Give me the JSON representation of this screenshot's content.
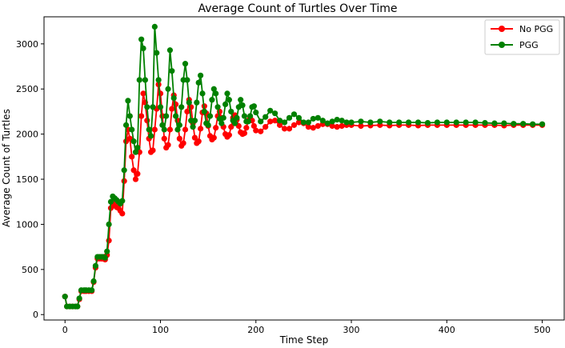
{
  "chart_data": {
    "type": "line",
    "title": "Average Count of Turtles Over Time",
    "xlabel": "Time Step",
    "ylabel": "Average Count of Turtles",
    "xlim": [
      -22,
      523
    ],
    "ylim": [
      -60,
      3300
    ],
    "xticks": [
      0,
      100,
      200,
      300,
      400,
      500
    ],
    "yticks": [
      0,
      500,
      1000,
      1500,
      2000,
      2500,
      3000
    ],
    "marker": "circle",
    "legend_position": "top-right",
    "grid": false,
    "series": [
      {
        "name": "No PGG",
        "color": "#ff0000",
        "points": [
          [
            0,
            200
          ],
          [
            2,
            90
          ],
          [
            5,
            90
          ],
          [
            8,
            90
          ],
          [
            11,
            90
          ],
          [
            13,
            90
          ],
          [
            15,
            170
          ],
          [
            17,
            260
          ],
          [
            20,
            260
          ],
          [
            22,
            260
          ],
          [
            25,
            260
          ],
          [
            28,
            260
          ],
          [
            30,
            360
          ],
          [
            32,
            520
          ],
          [
            34,
            620
          ],
          [
            36,
            620
          ],
          [
            38,
            620
          ],
          [
            40,
            620
          ],
          [
            42,
            610
          ],
          [
            44,
            660
          ],
          [
            46,
            820
          ],
          [
            48,
            1180
          ],
          [
            50,
            1230
          ],
          [
            52,
            1210
          ],
          [
            54,
            1190
          ],
          [
            56,
            1180
          ],
          [
            58,
            1150
          ],
          [
            60,
            1120
          ],
          [
            62,
            1480
          ],
          [
            64,
            1920
          ],
          [
            66,
            2050
          ],
          [
            68,
            1950
          ],
          [
            70,
            1750
          ],
          [
            72,
            1600
          ],
          [
            74,
            1500
          ],
          [
            76,
            1560
          ],
          [
            78,
            1800
          ],
          [
            80,
            2200
          ],
          [
            82,
            2450
          ],
          [
            84,
            2350
          ],
          [
            86,
            2150
          ],
          [
            88,
            1950
          ],
          [
            90,
            1800
          ],
          [
            92,
            1820
          ],
          [
            94,
            2050
          ],
          [
            96,
            2280
          ],
          [
            98,
            2550
          ],
          [
            100,
            2450
          ],
          [
            102,
            2200
          ],
          [
            104,
            1950
          ],
          [
            106,
            1850
          ],
          [
            108,
            1880
          ],
          [
            110,
            2050
          ],
          [
            112,
            2280
          ],
          [
            114,
            2430
          ],
          [
            116,
            2330
          ],
          [
            118,
            2150
          ],
          [
            120,
            1950
          ],
          [
            122,
            1870
          ],
          [
            124,
            1900
          ],
          [
            126,
            2050
          ],
          [
            128,
            2250
          ],
          [
            130,
            2380
          ],
          [
            132,
            2300
          ],
          [
            134,
            2120
          ],
          [
            136,
            1960
          ],
          [
            138,
            1900
          ],
          [
            140,
            1920
          ],
          [
            142,
            2060
          ],
          [
            144,
            2240
          ],
          [
            146,
            2310
          ],
          [
            148,
            2230
          ],
          [
            150,
            2090
          ],
          [
            152,
            1980
          ],
          [
            154,
            1940
          ],
          [
            156,
            1960
          ],
          [
            158,
            2070
          ],
          [
            160,
            2200
          ],
          [
            162,
            2250
          ],
          [
            164,
            2180
          ],
          [
            166,
            2080
          ],
          [
            168,
            2000
          ],
          [
            170,
            1970
          ],
          [
            172,
            1990
          ],
          [
            174,
            2080
          ],
          [
            176,
            2180
          ],
          [
            178,
            2210
          ],
          [
            180,
            2160
          ],
          [
            182,
            2090
          ],
          [
            184,
            2020
          ],
          [
            186,
            2000
          ],
          [
            188,
            2010
          ],
          [
            190,
            2070
          ],
          [
            192,
            2150
          ],
          [
            194,
            2180
          ],
          [
            196,
            2150
          ],
          [
            198,
            2090
          ],
          [
            200,
            2040
          ],
          [
            205,
            2030
          ],
          [
            210,
            2080
          ],
          [
            215,
            2140
          ],
          [
            220,
            2150
          ],
          [
            225,
            2100
          ],
          [
            230,
            2060
          ],
          [
            235,
            2060
          ],
          [
            240,
            2100
          ],
          [
            245,
            2130
          ],
          [
            250,
            2120
          ],
          [
            255,
            2080
          ],
          [
            260,
            2070
          ],
          [
            265,
            2090
          ],
          [
            270,
            2110
          ],
          [
            275,
            2110
          ],
          [
            280,
            2090
          ],
          [
            285,
            2080
          ],
          [
            290,
            2090
          ],
          [
            295,
            2100
          ],
          [
            300,
            2100
          ],
          [
            310,
            2090
          ],
          [
            320,
            2095
          ],
          [
            330,
            2100
          ],
          [
            340,
            2095
          ],
          [
            350,
            2100
          ],
          [
            360,
            2100
          ],
          [
            370,
            2095
          ],
          [
            380,
            2100
          ],
          [
            390,
            2100
          ],
          [
            400,
            2100
          ],
          [
            410,
            2100
          ],
          [
            420,
            2100
          ],
          [
            430,
            2100
          ],
          [
            440,
            2100
          ],
          [
            450,
            2100
          ],
          [
            460,
            2095
          ],
          [
            470,
            2100
          ],
          [
            480,
            2100
          ],
          [
            490,
            2100
          ],
          [
            500,
            2100
          ]
        ]
      },
      {
        "name": "PGG",
        "color": "#008000",
        "points": [
          [
            0,
            200
          ],
          [
            2,
            90
          ],
          [
            5,
            90
          ],
          [
            8,
            90
          ],
          [
            11,
            90
          ],
          [
            13,
            90
          ],
          [
            15,
            180
          ],
          [
            17,
            270
          ],
          [
            20,
            270
          ],
          [
            22,
            270
          ],
          [
            25,
            270
          ],
          [
            28,
            270
          ],
          [
            30,
            370
          ],
          [
            32,
            540
          ],
          [
            34,
            640
          ],
          [
            36,
            640
          ],
          [
            38,
            640
          ],
          [
            40,
            640
          ],
          [
            42,
            630
          ],
          [
            44,
            700
          ],
          [
            46,
            1000
          ],
          [
            48,
            1250
          ],
          [
            50,
            1310
          ],
          [
            52,
            1290
          ],
          [
            54,
            1270
          ],
          [
            56,
            1250
          ],
          [
            58,
            1230
          ],
          [
            60,
            1260
          ],
          [
            62,
            1600
          ],
          [
            64,
            2100
          ],
          [
            66,
            2370
          ],
          [
            68,
            2200
          ],
          [
            70,
            2050
          ],
          [
            72,
            1920
          ],
          [
            74,
            1800
          ],
          [
            76,
            1850
          ],
          [
            78,
            2600
          ],
          [
            80,
            3050
          ],
          [
            82,
            2950
          ],
          [
            84,
            2600
          ],
          [
            86,
            2300
          ],
          [
            88,
            2050
          ],
          [
            90,
            1980
          ],
          [
            92,
            2300
          ],
          [
            94,
            3190
          ],
          [
            96,
            2900
          ],
          [
            98,
            2600
          ],
          [
            100,
            2300
          ],
          [
            102,
            2100
          ],
          [
            104,
            2050
          ],
          [
            106,
            2200
          ],
          [
            108,
            2500
          ],
          [
            110,
            2930
          ],
          [
            112,
            2700
          ],
          [
            114,
            2400
          ],
          [
            116,
            2200
          ],
          [
            118,
            2050
          ],
          [
            120,
            2100
          ],
          [
            122,
            2300
          ],
          [
            124,
            2600
          ],
          [
            126,
            2780
          ],
          [
            128,
            2600
          ],
          [
            130,
            2350
          ],
          [
            132,
            2150
          ],
          [
            134,
            2080
          ],
          [
            136,
            2150
          ],
          [
            138,
            2350
          ],
          [
            140,
            2570
          ],
          [
            142,
            2650
          ],
          [
            144,
            2450
          ],
          [
            146,
            2250
          ],
          [
            148,
            2120
          ],
          [
            150,
            2100
          ],
          [
            152,
            2200
          ],
          [
            154,
            2380
          ],
          [
            156,
            2500
          ],
          [
            158,
            2450
          ],
          [
            160,
            2300
          ],
          [
            162,
            2170
          ],
          [
            164,
            2120
          ],
          [
            166,
            2180
          ],
          [
            168,
            2330
          ],
          [
            170,
            2450
          ],
          [
            172,
            2380
          ],
          [
            174,
            2250
          ],
          [
            176,
            2150
          ],
          [
            178,
            2120
          ],
          [
            180,
            2180
          ],
          [
            182,
            2300
          ],
          [
            184,
            2380
          ],
          [
            186,
            2320
          ],
          [
            188,
            2200
          ],
          [
            190,
            2140
          ],
          [
            192,
            2140
          ],
          [
            194,
            2200
          ],
          [
            196,
            2300
          ],
          [
            198,
            2310
          ],
          [
            200,
            2240
          ],
          [
            205,
            2140
          ],
          [
            210,
            2190
          ],
          [
            215,
            2260
          ],
          [
            220,
            2230
          ],
          [
            225,
            2150
          ],
          [
            230,
            2130
          ],
          [
            235,
            2180
          ],
          [
            240,
            2220
          ],
          [
            245,
            2180
          ],
          [
            250,
            2130
          ],
          [
            255,
            2130
          ],
          [
            260,
            2170
          ],
          [
            265,
            2180
          ],
          [
            270,
            2150
          ],
          [
            275,
            2120
          ],
          [
            280,
            2140
          ],
          [
            285,
            2160
          ],
          [
            290,
            2150
          ],
          [
            295,
            2130
          ],
          [
            300,
            2130
          ],
          [
            310,
            2140
          ],
          [
            320,
            2130
          ],
          [
            330,
            2140
          ],
          [
            340,
            2130
          ],
          [
            350,
            2130
          ],
          [
            360,
            2130
          ],
          [
            370,
            2130
          ],
          [
            380,
            2125
          ],
          [
            390,
            2130
          ],
          [
            400,
            2130
          ],
          [
            410,
            2130
          ],
          [
            420,
            2130
          ],
          [
            430,
            2130
          ],
          [
            440,
            2125
          ],
          [
            450,
            2120
          ],
          [
            460,
            2120
          ],
          [
            470,
            2115
          ],
          [
            480,
            2115
          ],
          [
            490,
            2110
          ],
          [
            500,
            2110
          ]
        ]
      }
    ]
  }
}
